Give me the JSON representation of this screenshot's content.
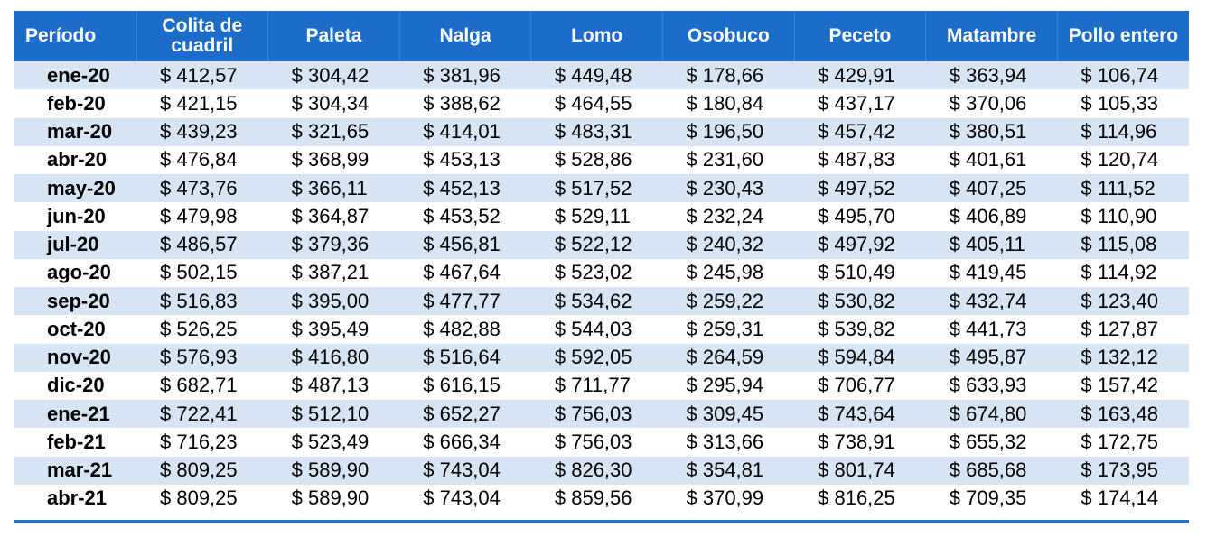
{
  "headers": [
    "Período",
    "Colita de cuadril",
    "Paleta",
    "Nalga",
    "Lomo",
    "Osobuco",
    "Peceto",
    "Matambre",
    "Pollo entero"
  ],
  "rows": [
    [
      "ene-20",
      "$ 412,57",
      "$ 304,42",
      "$ 381,96",
      "$ 449,48",
      "$ 178,66",
      "$ 429,91",
      "$ 363,94",
      "$ 106,74"
    ],
    [
      "feb-20",
      "$ 421,15",
      "$ 304,34",
      "$ 388,62",
      "$ 464,55",
      "$ 180,84",
      "$ 437,17",
      "$ 370,06",
      "$ 105,33"
    ],
    [
      "mar-20",
      "$ 439,23",
      "$ 321,65",
      "$ 414,01",
      "$ 483,31",
      "$ 196,50",
      "$ 457,42",
      "$ 380,51",
      "$ 114,96"
    ],
    [
      "abr-20",
      "$ 476,84",
      "$ 368,99",
      "$ 453,13",
      "$ 528,86",
      "$ 231,60",
      "$ 487,83",
      "$ 401,61",
      "$ 120,74"
    ],
    [
      "may-20",
      "$ 473,76",
      "$ 366,11",
      "$ 452,13",
      "$ 517,52",
      "$ 230,43",
      "$ 497,52",
      "$ 407,25",
      "$ 111,52"
    ],
    [
      "jun-20",
      "$ 479,98",
      "$ 364,87",
      "$ 453,52",
      "$ 529,11",
      "$ 232,24",
      "$ 495,70",
      "$ 406,89",
      "$ 110,90"
    ],
    [
      "jul-20",
      "$ 486,57",
      "$ 379,36",
      "$ 456,81",
      "$ 522,12",
      "$ 240,32",
      "$ 497,92",
      "$ 405,11",
      "$ 115,08"
    ],
    [
      "ago-20",
      "$ 502,15",
      "$ 387,21",
      "$ 467,64",
      "$ 523,02",
      "$ 245,98",
      "$ 510,49",
      "$ 419,45",
      "$ 114,92"
    ],
    [
      "sep-20",
      "$ 516,83",
      "$ 395,00",
      "$ 477,77",
      "$ 534,62",
      "$ 259,22",
      "$ 530,82",
      "$ 432,74",
      "$ 123,40"
    ],
    [
      "oct-20",
      "$ 526,25",
      "$ 395,49",
      "$ 482,88",
      "$ 544,03",
      "$ 259,31",
      "$ 539,82",
      "$ 441,73",
      "$ 127,87"
    ],
    [
      "nov-20",
      "$ 576,93",
      "$ 416,80",
      "$ 516,64",
      "$ 592,05",
      "$ 264,59",
      "$ 594,84",
      "$ 495,87",
      "$ 132,12"
    ],
    [
      "dic-20",
      "$ 682,71",
      "$ 487,13",
      "$ 616,15",
      "$ 711,77",
      "$ 295,94",
      "$ 706,77",
      "$ 633,93",
      "$ 157,42"
    ],
    [
      "ene-21",
      "$ 722,41",
      "$ 512,10",
      "$ 652,27",
      "$ 756,03",
      "$ 309,45",
      "$ 743,64",
      "$ 674,80",
      "$ 163,48"
    ],
    [
      "feb-21",
      "$ 716,23",
      "$ 523,49",
      "$ 666,34",
      "$ 756,03",
      "$ 313,66",
      "$ 738,91",
      "$ 655,32",
      "$ 172,75"
    ],
    [
      "mar-21",
      "$ 809,25",
      "$ 589,90",
      "$ 743,04",
      "$ 826,30",
      "$ 354,81",
      "$ 801,74",
      "$ 685,68",
      "$ 173,95"
    ],
    [
      "abr-21",
      "$ 809,25",
      "$ 589,90",
      "$ 743,04",
      "$ 859,56",
      "$ 370,99",
      "$ 816,25",
      "$ 709,35",
      "$ 174,14"
    ]
  ],
  "colors": {
    "header_bg": "#1c6dc9",
    "header_text": "#ffffff",
    "band_row": "#d6e4f4",
    "bottom_rule": "#2a6fc0"
  }
}
